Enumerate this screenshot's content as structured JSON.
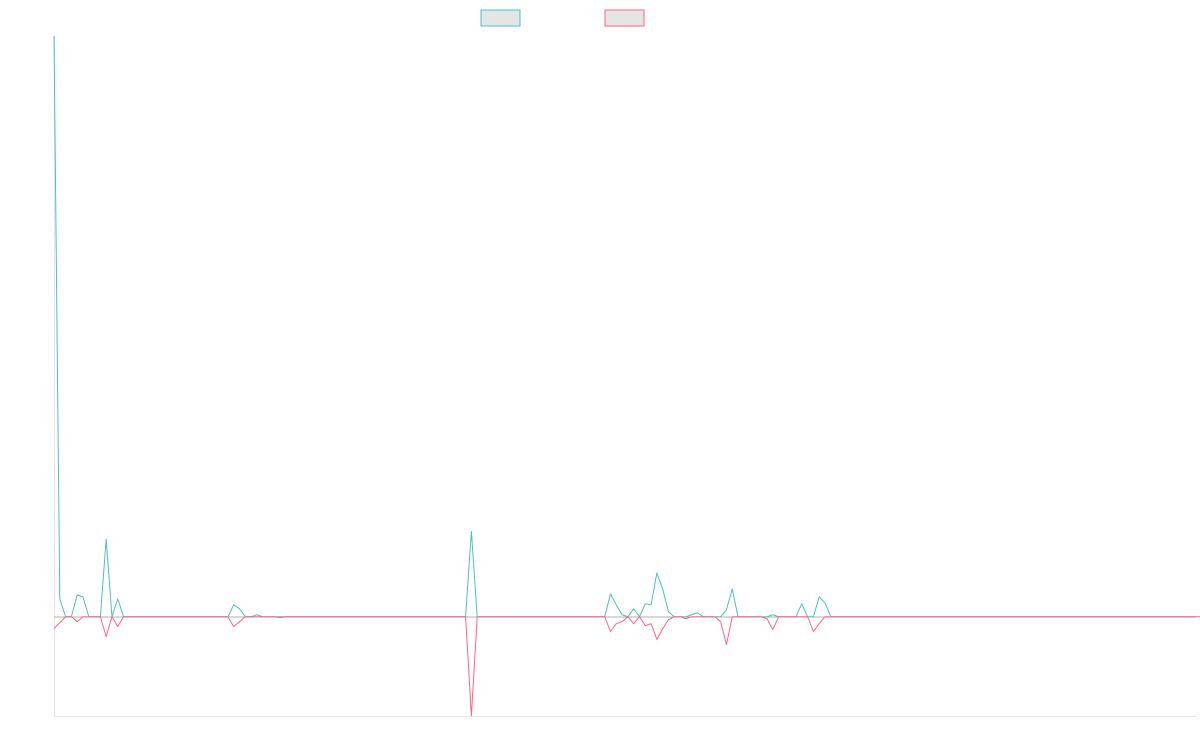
{
  "chart_data": {
    "type": "line",
    "title": "",
    "xlabel": "",
    "ylabel": "",
    "grid": false,
    "legend": "top-center",
    "ylim": [
      -100,
      585
    ],
    "series": [
      {
        "name": "",
        "color": "#4bc0c0",
        "fill": "#e5e5e5",
        "values": [
          585,
          18,
          0,
          0,
          22,
          20,
          0,
          0,
          0,
          78,
          0,
          18,
          0,
          0,
          0,
          0,
          0,
          0,
          0,
          0,
          0,
          0,
          0,
          0,
          0,
          0,
          0,
          0,
          0,
          0,
          0,
          12,
          8,
          0,
          0,
          2,
          0,
          0,
          0,
          -1,
          0,
          0,
          0,
          0,
          0,
          0,
          0,
          0,
          0,
          0,
          0,
          0,
          0,
          0,
          0,
          0,
          0,
          0,
          0,
          0,
          0,
          0,
          0,
          0,
          0,
          0,
          0,
          0,
          0,
          0,
          0,
          0,
          86,
          0,
          0,
          0,
          0,
          0,
          0,
          0,
          0,
          0,
          0,
          0,
          0,
          0,
          0,
          0,
          0,
          0,
          0,
          0,
          0,
          0,
          0,
          0,
          23,
          12,
          2,
          0,
          8,
          0,
          13,
          12,
          44,
          28,
          5,
          0,
          0,
          0,
          2,
          4,
          0,
          0,
          0,
          0,
          7,
          28,
          0,
          0,
          0,
          0,
          0,
          0,
          2,
          0,
          0,
          0,
          0,
          13,
          0,
          0,
          20,
          14,
          0,
          0,
          0,
          0,
          0,
          0,
          0,
          0,
          0,
          0,
          0,
          0,
          0,
          0,
          0,
          0,
          0,
          0,
          0,
          0,
          0,
          0,
          0,
          0,
          0,
          0,
          0,
          0,
          0,
          0,
          0,
          0,
          0,
          0,
          0,
          0,
          0,
          0,
          0,
          0,
          0,
          0,
          0,
          0,
          0,
          0,
          0,
          0,
          0,
          0,
          0,
          0,
          0,
          0,
          0,
          0,
          0,
          0,
          0,
          0,
          0,
          0,
          0,
          0
        ]
      },
      {
        "name": "",
        "color": "#ff6384",
        "fill": "#e5e5e5",
        "values": [
          -12,
          -6,
          0,
          0,
          -5,
          0,
          0,
          0,
          0,
          -20,
          0,
          -10,
          0,
          0,
          0,
          0,
          0,
          0,
          0,
          0,
          0,
          0,
          0,
          0,
          0,
          0,
          0,
          0,
          0,
          0,
          0,
          -10,
          -5,
          0,
          0,
          0,
          0,
          0,
          0,
          0,
          0,
          0,
          0,
          0,
          0,
          0,
          0,
          0,
          0,
          0,
          0,
          0,
          0,
          0,
          0,
          0,
          0,
          0,
          0,
          0,
          0,
          0,
          0,
          0,
          0,
          0,
          0,
          0,
          0,
          0,
          0,
          0,
          -100,
          0,
          0,
          0,
          0,
          0,
          0,
          0,
          0,
          0,
          0,
          0,
          0,
          0,
          0,
          0,
          0,
          0,
          0,
          0,
          0,
          0,
          0,
          0,
          -15,
          -7,
          -5,
          0,
          -7,
          0,
          -9,
          -7,
          -23,
          -12,
          -3,
          0,
          0,
          -2,
          0,
          0,
          0,
          0,
          0,
          -5,
          -28,
          0,
          0,
          0,
          0,
          0,
          0,
          -2,
          -13,
          0,
          0,
          0,
          0,
          0,
          0,
          -15,
          -7,
          0,
          0,
          0,
          0,
          0,
          0,
          0,
          0,
          0,
          0,
          0,
          0,
          0,
          0,
          0,
          0,
          0,
          0,
          0,
          0,
          0,
          0,
          0,
          0,
          0,
          0,
          0,
          0,
          0,
          0,
          0,
          0,
          0,
          0,
          0,
          0,
          0,
          0,
          0,
          0,
          0,
          0,
          0,
          0,
          0,
          0,
          0,
          0,
          0,
          0,
          0,
          0,
          0,
          0,
          0,
          0,
          0,
          0,
          0,
          0,
          0,
          0,
          0,
          0,
          0,
          0,
          0
        ]
      }
    ]
  }
}
